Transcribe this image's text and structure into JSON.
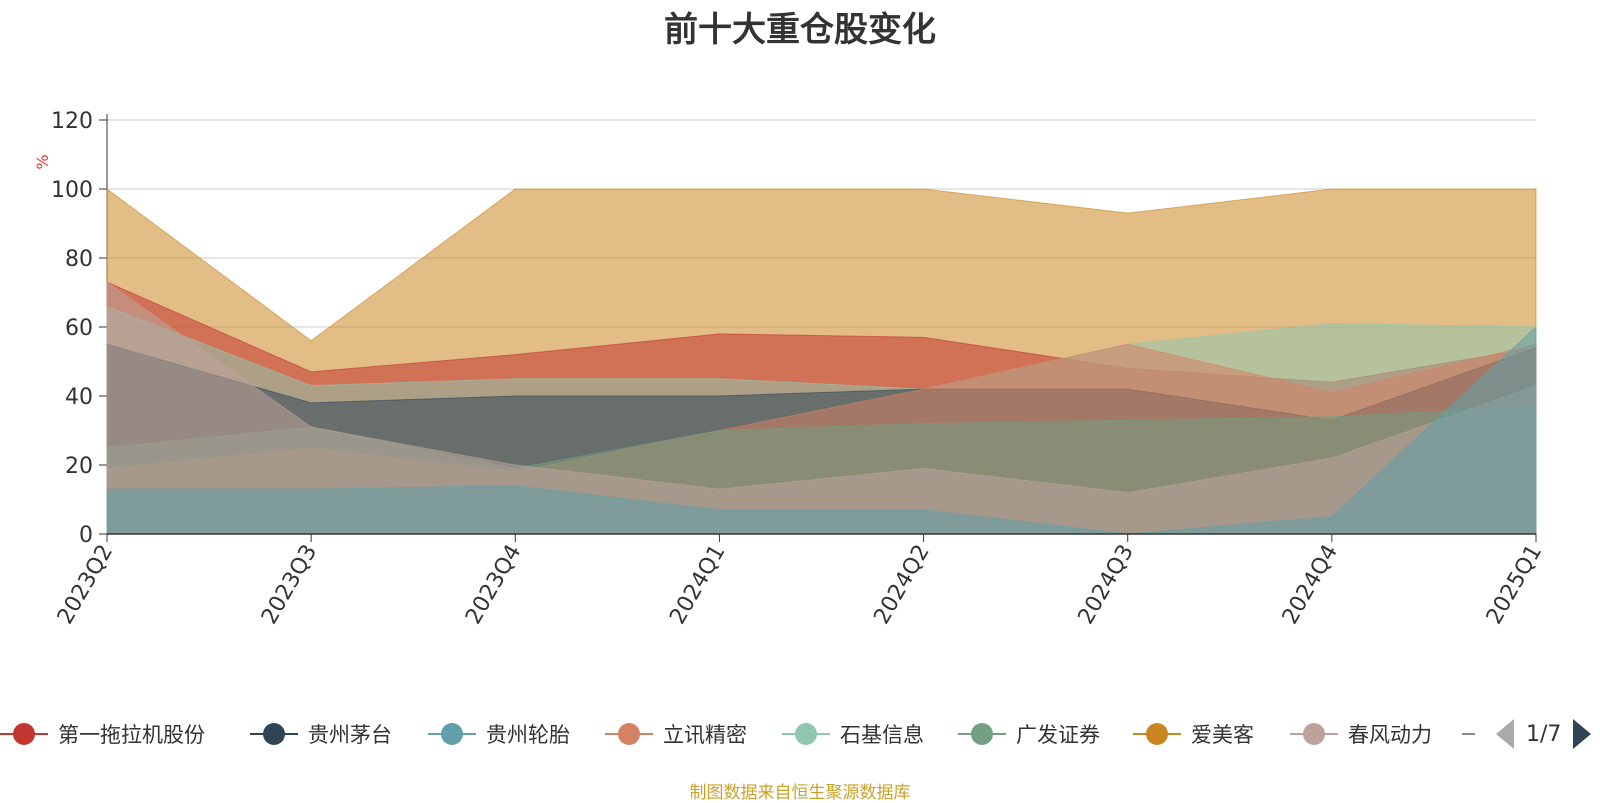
{
  "chart_data": {
    "type": "area",
    "title": "前十大重仓股变化",
    "ylabel": "%",
    "ylim": [
      0,
      120
    ],
    "yticks": [
      0,
      20,
      40,
      60,
      80,
      100,
      120
    ],
    "categories": [
      "2023Q2",
      "2023Q3",
      "2023Q4",
      "2024Q1",
      "2024Q2",
      "2024Q3",
      "2024Q4",
      "2025Q1"
    ],
    "stacked": false,
    "grid": true,
    "legend_position": "bottom",
    "source": "制图数据来自恒生聚源数据库",
    "series": [
      {
        "name": "第一拖拉机股份",
        "color": "#c23531",
        "values": [
          73,
          47,
          52,
          58,
          57,
          48,
          44,
          54
        ]
      },
      {
        "name": "贵州茅台",
        "color": "#2f4554",
        "values": [
          55,
          38,
          40,
          40,
          42,
          42,
          33,
          54
        ]
      },
      {
        "name": "贵州轮胎",
        "color": "#61a0a8",
        "values": [
          13,
          13,
          14,
          7,
          7,
          0,
          5,
          60
        ]
      },
      {
        "name": "立讯精密",
        "color": "#d48265",
        "values": [
          19,
          25,
          18,
          30,
          42,
          55,
          41,
          55
        ]
      },
      {
        "name": "石基信息",
        "color": "#91c7ae",
        "values": [
          66,
          43,
          45,
          45,
          42,
          55,
          61,
          60
        ]
      },
      {
        "name": "广发证券",
        "color": "#749f83",
        "values": [
          25,
          31,
          19,
          30,
          32,
          33,
          34,
          37
        ]
      },
      {
        "name": "爱美客",
        "color": "#ca8622",
        "values": [
          100,
          56,
          100,
          100,
          100,
          93,
          100,
          100
        ]
      },
      {
        "name": "春风动力",
        "color": "#bda29a",
        "values": [
          73,
          31,
          20,
          13,
          19,
          12,
          22,
          43
        ]
      }
    ],
    "legend_visible": [
      "第一拖拉机股份",
      "贵州茅台",
      "贵州轮胎",
      "立讯精密",
      "石基信息",
      "广发证券",
      "爱美客",
      "春风动力"
    ],
    "legend_page": "1/7"
  }
}
